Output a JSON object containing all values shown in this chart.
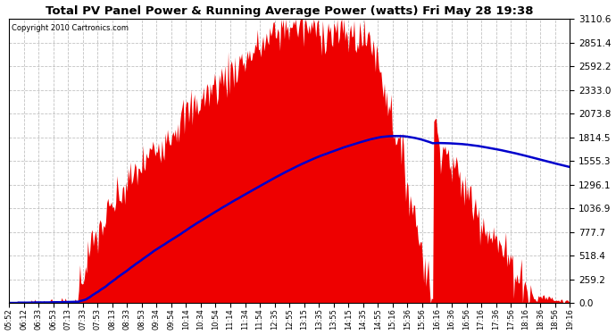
{
  "title": "Total PV Panel Power & Running Average Power (watts) Fri May 28 19:38",
  "copyright": "Copyright 2010 Cartronics.com",
  "background_color": "#ffffff",
  "plot_bg_color": "#ffffff",
  "grid_color": "#bbbbbb",
  "fill_color": "#ee0000",
  "line_color": "#0000cc",
  "y_max": 3110.6,
  "y_min": 0.0,
  "y_ticks": [
    0.0,
    259.2,
    518.4,
    777.7,
    1036.9,
    1296.1,
    1555.3,
    1814.5,
    2073.8,
    2333.0,
    2592.2,
    2851.4,
    3110.6
  ],
  "x_labels": [
    "05:52",
    "06:12",
    "06:33",
    "06:53",
    "07:13",
    "07:33",
    "07:53",
    "08:13",
    "08:33",
    "08:53",
    "09:34",
    "09:54",
    "10:14",
    "10:34",
    "10:54",
    "11:14",
    "11:34",
    "11:54",
    "12:35",
    "12:55",
    "13:15",
    "13:35",
    "13:55",
    "14:15",
    "14:35",
    "14:55",
    "15:16",
    "15:36",
    "15:56",
    "16:16",
    "16:36",
    "16:56",
    "17:16",
    "17:36",
    "17:56",
    "18:16",
    "18:36",
    "18:56",
    "19:16"
  ]
}
